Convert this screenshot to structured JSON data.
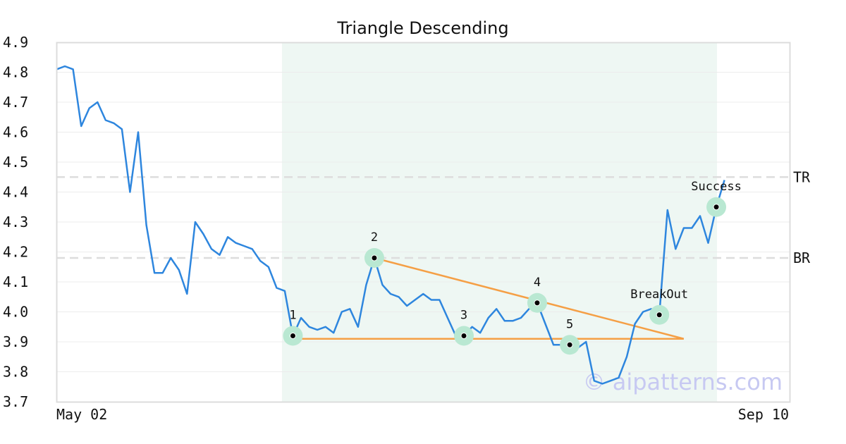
{
  "chart_data": {
    "type": "line",
    "title": "Triangle Descending",
    "xlabel": "",
    "ylabel": "",
    "ylim": [
      3.7,
      4.9
    ],
    "y_ticks": [
      "3.7",
      "3.8",
      "3.9",
      "4.0",
      "4.1",
      "4.2",
      "4.3",
      "4.4",
      "4.5",
      "4.6",
      "4.7",
      "4.8",
      "4.9"
    ],
    "x_ticks": [
      "May 02",
      "Sep 10"
    ],
    "grid": "horizontal",
    "series": [
      {
        "color": "#2e86de",
        "values": [
          4.81,
          4.82,
          4.81,
          4.62,
          4.68,
          4.7,
          4.64,
          4.63,
          4.61,
          4.4,
          4.6,
          4.29,
          4.13,
          4.13,
          4.18,
          4.14,
          4.06,
          4.3,
          4.26,
          4.21,
          4.19,
          4.25,
          4.23,
          4.22,
          4.21,
          4.17,
          4.15,
          4.08,
          4.07,
          3.92,
          3.98,
          3.95,
          3.94,
          3.95,
          3.93,
          4.0,
          4.01,
          3.95,
          4.09,
          4.18,
          4.09,
          4.06,
          4.05,
          4.02,
          4.04,
          4.06,
          4.04,
          4.04,
          3.98,
          3.92,
          3.92,
          3.95,
          3.93,
          3.98,
          4.01,
          3.97,
          3.97,
          3.98,
          4.01,
          4.03,
          3.96,
          3.89,
          3.89,
          3.89,
          3.88,
          3.9,
          3.77,
          3.76,
          3.77,
          3.78,
          3.85,
          3.96,
          4.0,
          4.01,
          3.99,
          4.34,
          4.21,
          4.28,
          4.28,
          4.32,
          4.23,
          4.35,
          4.44
        ]
      }
    ],
    "pattern_region": {
      "start_index": 28,
      "end_index": 81,
      "color": "#eef7f3"
    },
    "reference_lines": [
      {
        "label": "TR",
        "value": 4.45,
        "color": "#dddddd"
      },
      {
        "label": "BR",
        "value": 4.18,
        "color": "#dddddd"
      }
    ],
    "trend_lines": [
      {
        "from": {
          "index": 29,
          "value": 3.91
        },
        "to": {
          "index": 77,
          "value": 3.91
        },
        "color": "#f59f45"
      },
      {
        "from": {
          "index": 39,
          "value": 4.18
        },
        "to": {
          "index": 77,
          "value": 3.91
        },
        "color": "#f59f45"
      }
    ],
    "points": [
      {
        "label": "1",
        "index": 29,
        "value": 3.92
      },
      {
        "label": "2",
        "index": 39,
        "value": 4.18
      },
      {
        "label": "3",
        "index": 50,
        "value": 3.92
      },
      {
        "label": "4",
        "index": 59,
        "value": 4.03
      },
      {
        "label": "5",
        "index": 63,
        "value": 3.89
      },
      {
        "label": "BreakOut",
        "index": 74,
        "value": 3.99
      },
      {
        "label": "Success",
        "index": 81,
        "value": 4.35
      }
    ],
    "point_color": "#b9e8d2",
    "watermark": "© aipatterns.com"
  }
}
